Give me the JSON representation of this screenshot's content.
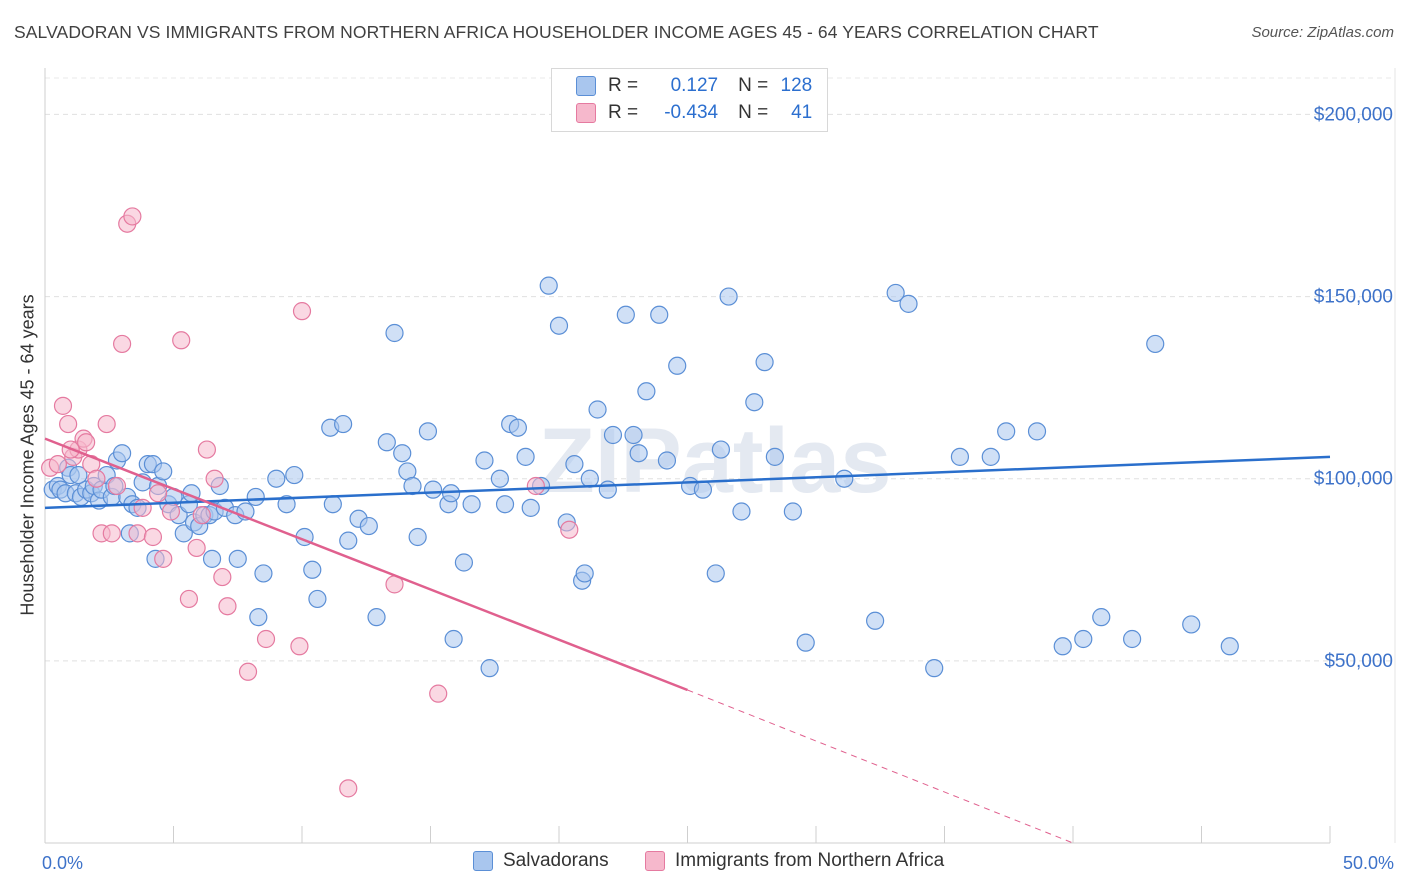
{
  "header": {
    "title": "SALVADORAN VS IMMIGRANTS FROM NORTHERN AFRICA HOUSEHOLDER INCOME AGES 45 - 64 YEARS CORRELATION CHART",
    "source": "Source: ZipAtlas.com"
  },
  "watermark": "ZIPatlas",
  "stats": [
    {
      "r_label": "R =",
      "r_value": "0.127",
      "n_label": "N =",
      "n_value": "128"
    },
    {
      "r_label": "R =",
      "r_value": "-0.434",
      "n_label": "N =",
      "n_value": "41"
    }
  ],
  "legend": {
    "series1": "Salvadorans",
    "series2": "Immigrants from Northern Africa"
  },
  "colors": {
    "blue_fill": "#a9c6ee",
    "blue_stroke": "#5b8fd6",
    "blue_line": "#2a6fcc",
    "pink_fill": "#f6b8cc",
    "pink_stroke": "#e57aa0",
    "pink_line": "#e0608e",
    "tick_text": "#3d72c9"
  },
  "chart_data": {
    "type": "scatter",
    "title": "SALVADORAN VS IMMIGRANTS FROM NORTHERN AFRICA HOUSEHOLDER INCOME AGES 45 - 64 YEARS CORRELATION CHART",
    "xlabel": "",
    "ylabel": "Householder Income Ages 45 - 64 years",
    "xlim": [
      0,
      50
    ],
    "ylim": [
      0,
      210000
    ],
    "x_tick_labels": [
      "0.0%",
      "50.0%"
    ],
    "y_ticks": [
      50000,
      100000,
      150000,
      200000
    ],
    "y_tick_labels": [
      "$50,000",
      "$100,000",
      "$150,000",
      "$200,000"
    ],
    "grid": true,
    "legend_position": "bottom",
    "series": [
      {
        "name": "Salvadorans",
        "trend": {
          "x0": 0,
          "y0": 92000,
          "x1": 50,
          "y1": 106000
        },
        "points": [
          [
            0.3,
            97000
          ],
          [
            0.5,
            98000
          ],
          [
            0.6,
            97000
          ],
          [
            0.8,
            96000
          ],
          [
            0.9,
            103000
          ],
          [
            1.0,
            101000
          ],
          [
            1.2,
            96000
          ],
          [
            1.4,
            95000
          ],
          [
            1.6,
            97000
          ],
          [
            1.8,
            96000
          ],
          [
            1.9,
            98000
          ],
          [
            2.1,
            94000
          ],
          [
            2.2,
            97000
          ],
          [
            2.4,
            101000
          ],
          [
            2.6,
            95000
          ],
          [
            2.8,
            105000
          ],
          [
            3.0,
            107000
          ],
          [
            3.2,
            95000
          ],
          [
            3.4,
            93000
          ],
          [
            3.6,
            92000
          ],
          [
            3.8,
            99000
          ],
          [
            4.0,
            104000
          ],
          [
            4.2,
            104000
          ],
          [
            4.4,
            98000
          ],
          [
            4.6,
            102000
          ],
          [
            4.8,
            93000
          ],
          [
            5.0,
            95000
          ],
          [
            5.2,
            90000
          ],
          [
            5.4,
            85000
          ],
          [
            5.6,
            93000
          ],
          [
            5.8,
            88000
          ],
          [
            6.0,
            87000
          ],
          [
            6.2,
            90000
          ],
          [
            6.4,
            90000
          ],
          [
            6.6,
            91000
          ],
          [
            6.8,
            98000
          ],
          [
            7.0,
            92000
          ],
          [
            7.4,
            90000
          ],
          [
            7.8,
            91000
          ],
          [
            8.2,
            95000
          ],
          [
            3.3,
            85000
          ],
          [
            4.3,
            78000
          ],
          [
            6.5,
            78000
          ],
          [
            7.5,
            78000
          ],
          [
            8.5,
            74000
          ],
          [
            8.3,
            62000
          ],
          [
            9.0,
            100000
          ],
          [
            9.4,
            93000
          ],
          [
            10.1,
            84000
          ],
          [
            10.4,
            75000
          ],
          [
            10.6,
            67000
          ],
          [
            11.1,
            114000
          ],
          [
            11.6,
            115000
          ],
          [
            11.2,
            93000
          ],
          [
            11.8,
            83000
          ],
          [
            12.2,
            89000
          ],
          [
            12.6,
            87000
          ],
          [
            12.9,
            62000
          ],
          [
            13.3,
            110000
          ],
          [
            13.6,
            140000
          ],
          [
            13.9,
            107000
          ],
          [
            14.1,
            102000
          ],
          [
            14.5,
            84000
          ],
          [
            14.9,
            113000
          ],
          [
            15.1,
            97000
          ],
          [
            15.7,
            93000
          ],
          [
            15.9,
            56000
          ],
          [
            16.3,
            77000
          ],
          [
            16.6,
            93000
          ],
          [
            17.1,
            105000
          ],
          [
            17.3,
            48000
          ],
          [
            17.7,
            100000
          ],
          [
            18.1,
            115000
          ],
          [
            18.4,
            114000
          ],
          [
            18.7,
            106000
          ],
          [
            18.9,
            92000
          ],
          [
            19.3,
            98000
          ],
          [
            19.6,
            153000
          ],
          [
            20.0,
            142000
          ],
          [
            20.3,
            88000
          ],
          [
            20.6,
            104000
          ],
          [
            20.9,
            72000
          ],
          [
            21.2,
            100000
          ],
          [
            21.5,
            119000
          ],
          [
            21.9,
            97000
          ],
          [
            22.1,
            112000
          ],
          [
            22.6,
            145000
          ],
          [
            22.9,
            112000
          ],
          [
            23.1,
            107000
          ],
          [
            23.4,
            124000
          ],
          [
            23.9,
            145000
          ],
          [
            24.2,
            105000
          ],
          [
            24.6,
            131000
          ],
          [
            25.1,
            98000
          ],
          [
            25.6,
            97000
          ],
          [
            26.1,
            74000
          ],
          [
            26.3,
            108000
          ],
          [
            26.6,
            150000
          ],
          [
            27.1,
            91000
          ],
          [
            27.6,
            121000
          ],
          [
            28.0,
            132000
          ],
          [
            28.4,
            106000
          ],
          [
            29.1,
            91000
          ],
          [
            29.6,
            55000
          ],
          [
            31.1,
            100000
          ],
          [
            32.3,
            61000
          ],
          [
            33.1,
            151000
          ],
          [
            33.6,
            148000
          ],
          [
            34.6,
            48000
          ],
          [
            35.6,
            106000
          ],
          [
            36.8,
            106000
          ],
          [
            37.4,
            113000
          ],
          [
            38.6,
            113000
          ],
          [
            39.6,
            54000
          ],
          [
            40.4,
            56000
          ],
          [
            41.1,
            62000
          ],
          [
            42.3,
            56000
          ],
          [
            43.2,
            137000
          ],
          [
            44.6,
            60000
          ],
          [
            46.1,
            54000
          ],
          [
            1.3,
            101000
          ],
          [
            2.7,
            98000
          ],
          [
            5.7,
            96000
          ],
          [
            9.7,
            101000
          ],
          [
            14.3,
            98000
          ],
          [
            15.8,
            96000
          ],
          [
            17.9,
            93000
          ],
          [
            21.0,
            74000
          ]
        ]
      },
      {
        "name": "Immigrants from Northern Africa",
        "trend": {
          "x0": 0,
          "y0": 111000,
          "x1": 25,
          "y1": 42000
        },
        "trend_dashed": {
          "x0": 25,
          "y0": 42000,
          "x1": 40,
          "y1": 0
        },
        "points": [
          [
            0.2,
            103000
          ],
          [
            0.5,
            104000
          ],
          [
            0.7,
            120000
          ],
          [
            0.9,
            115000
          ],
          [
            1.1,
            106000
          ],
          [
            1.3,
            108000
          ],
          [
            1.5,
            111000
          ],
          [
            1.6,
            110000
          ],
          [
            1.8,
            104000
          ],
          [
            2.0,
            100000
          ],
          [
            2.2,
            85000
          ],
          [
            2.4,
            115000
          ],
          [
            2.6,
            85000
          ],
          [
            2.8,
            98000
          ],
          [
            3.0,
            137000
          ],
          [
            3.2,
            170000
          ],
          [
            3.4,
            172000
          ],
          [
            3.6,
            85000
          ],
          [
            3.8,
            92000
          ],
          [
            4.2,
            84000
          ],
          [
            4.6,
            78000
          ],
          [
            4.9,
            91000
          ],
          [
            5.3,
            138000
          ],
          [
            5.6,
            67000
          ],
          [
            5.9,
            81000
          ],
          [
            6.1,
            90000
          ],
          [
            6.3,
            108000
          ],
          [
            6.6,
            100000
          ],
          [
            6.9,
            73000
          ],
          [
            7.1,
            65000
          ],
          [
            7.9,
            47000
          ],
          [
            8.6,
            56000
          ],
          [
            9.9,
            54000
          ],
          [
            10.0,
            146000
          ],
          [
            11.8,
            15000
          ],
          [
            13.6,
            71000
          ],
          [
            15.3,
            41000
          ],
          [
            19.1,
            98000
          ],
          [
            20.4,
            86000
          ],
          [
            4.4,
            96000
          ],
          [
            1.0,
            108000
          ]
        ]
      }
    ]
  }
}
